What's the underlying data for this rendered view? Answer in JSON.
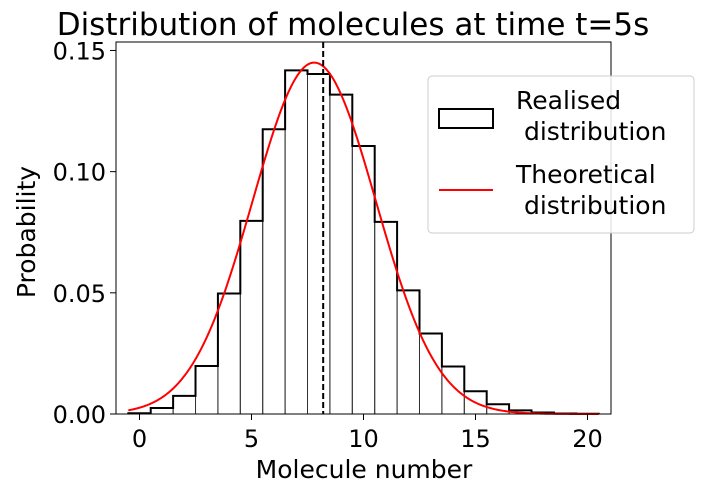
{
  "chart_data": {
    "type": "bar",
    "title": "Distribution of molecules at time t=5s",
    "xlabel": "Molecule number",
    "ylabel": "Probability",
    "xlim": [
      -1.05,
      21.05
    ],
    "ylim": [
      0,
      0.1535
    ],
    "xticks": [
      {
        "value": 0,
        "label": "0"
      },
      {
        "value": 5,
        "label": "5"
      },
      {
        "value": 10,
        "label": "10"
      },
      {
        "value": 15,
        "label": "15"
      },
      {
        "value": 20,
        "label": "20"
      }
    ],
    "yticks": [
      {
        "value": 0.0,
        "label": "0.00"
      },
      {
        "value": 0.05,
        "label": "0.05"
      },
      {
        "value": 0.1,
        "label": "0.10"
      },
      {
        "value": 0.15,
        "label": "0.15"
      }
    ],
    "series": [
      {
        "name": "Realised\n distribution",
        "kind": "step-histogram",
        "color": "#000000",
        "bin_width": 1,
        "x": [
          0,
          1,
          2,
          3,
          4,
          5,
          6,
          7,
          8,
          9,
          10,
          11,
          12,
          13,
          14,
          15,
          16,
          17,
          18,
          19,
          20
        ],
        "values": [
          0.0003,
          0.0025,
          0.0075,
          0.0198,
          0.0497,
          0.0797,
          0.1175,
          0.1418,
          0.1403,
          0.1318,
          0.1106,
          0.0793,
          0.051,
          0.0332,
          0.0196,
          0.0094,
          0.004,
          0.0015,
          0.0006,
          0.0002,
          0.0001
        ]
      },
      {
        "name": "Theoretical\n distribution",
        "kind": "line",
        "color": "#ff0000",
        "mean": 7.8,
        "std": 2.75,
        "peak": 0.145,
        "x_range": [
          -0.5,
          20.5
        ]
      }
    ],
    "annotations": [
      {
        "kind": "vline",
        "x": 8.2,
        "color": "#000000",
        "style": "dashed"
      }
    ],
    "legend": {
      "position": "right",
      "entries": [
        "Realised\n distribution",
        "Theoretical\n distribution"
      ]
    }
  }
}
